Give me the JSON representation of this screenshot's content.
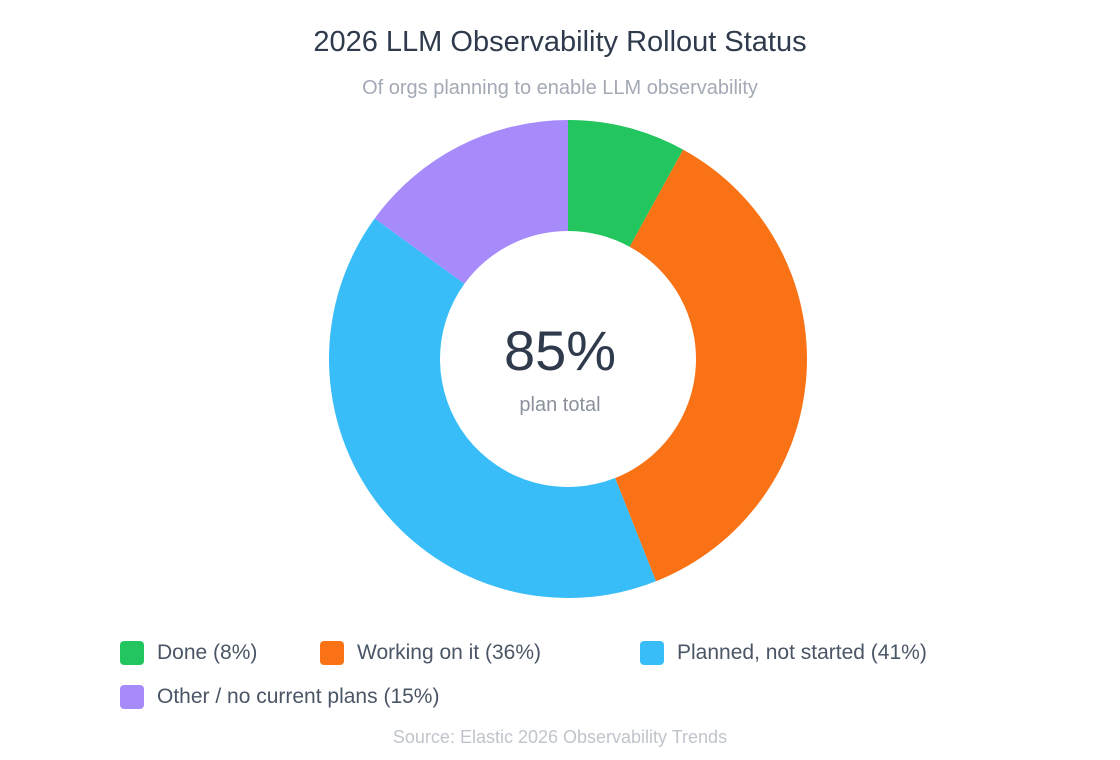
{
  "chart_data": {
    "type": "pie",
    "variant": "donut",
    "title": "2026 LLM Observability Rollout Status",
    "subtitle": "Of orgs planning to enable LLM observability",
    "center_value": "85%",
    "center_label": "plan total",
    "slices": [
      {
        "label": "Done (8%)",
        "value": 8,
        "color": "#22c55e"
      },
      {
        "label": "Working on it (36%)",
        "value": 36,
        "color": "#f97316"
      },
      {
        "label": "Planned, not started (41%)",
        "value": 41,
        "color": "#38bdf8"
      },
      {
        "label": "Other / no current plans (15%)",
        "value": 15,
        "color": "#a78bfa"
      }
    ],
    "source": "Source: Elastic 2026 Observability Trends"
  }
}
